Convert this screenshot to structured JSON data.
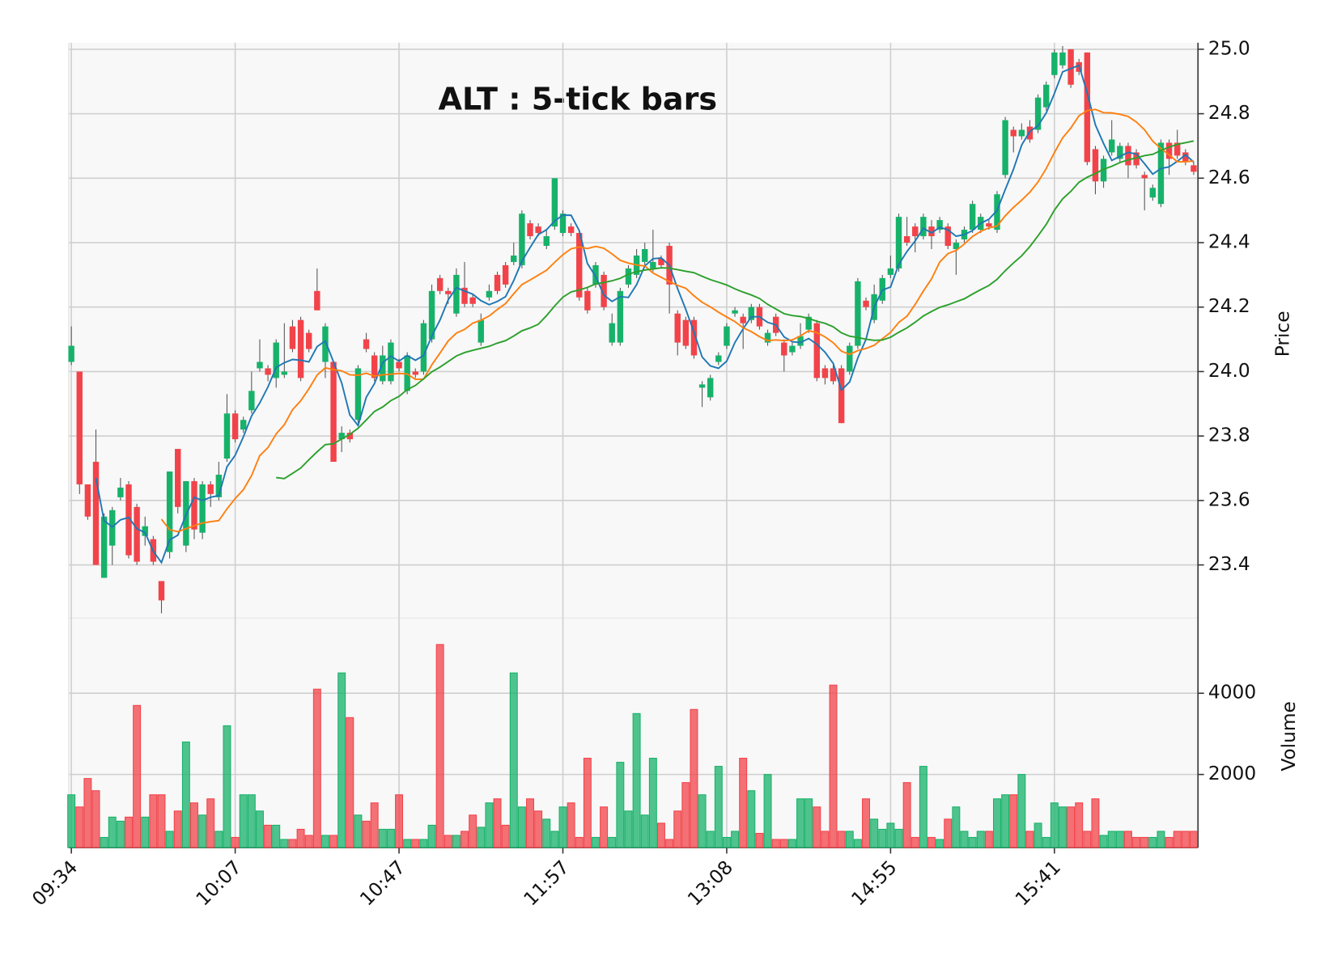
{
  "chart_data": {
    "type": "candlestick",
    "title": "ALT : 5-tick bars",
    "ylabel": "Price",
    "volume_label": "Volume",
    "categories": [
      "09:34",
      null,
      null,
      null,
      null,
      null,
      null,
      null,
      null,
      null,
      null,
      null,
      null,
      null,
      null,
      null,
      null,
      null,
      null,
      null,
      "10:07",
      null,
      null,
      null,
      null,
      null,
      null,
      null,
      null,
      null,
      null,
      null,
      null,
      null,
      null,
      null,
      null,
      null,
      null,
      null,
      "10:47",
      null,
      null,
      null,
      null,
      null,
      null,
      null,
      null,
      null,
      null,
      null,
      null,
      null,
      null,
      null,
      null,
      null,
      null,
      null,
      "11:57",
      null,
      null,
      null,
      null,
      null,
      null,
      null,
      null,
      null,
      null,
      null,
      null,
      null,
      null,
      null,
      null,
      null,
      null,
      null,
      "13:08",
      null,
      null,
      null,
      null,
      null,
      null,
      null,
      null,
      null,
      null,
      null,
      null,
      null,
      null,
      null,
      null,
      null,
      null,
      null,
      "14:55",
      null,
      null,
      null,
      null,
      null,
      null,
      null,
      null,
      null,
      null,
      null,
      null,
      null,
      null,
      null,
      null,
      null,
      null,
      null,
      "15:41",
      null,
      null,
      null,
      null,
      null,
      null,
      null,
      null,
      null,
      null,
      null,
      null,
      null,
      null,
      null,
      null,
      null
    ],
    "open": [
      24.03,
      24.0,
      23.65,
      23.72,
      23.36,
      23.46,
      23.61,
      23.65,
      23.58,
      23.49,
      23.48,
      23.35,
      23.44,
      23.76,
      23.46,
      23.66,
      23.5,
      23.65,
      23.61,
      23.73,
      23.87,
      23.82,
      23.88,
      24.01,
      24.01,
      23.98,
      23.99,
      24.14,
      24.16,
      24.12,
      24.25,
      24.03,
      24.03,
      23.79,
      23.81,
      23.85,
      24.1,
      24.05,
      23.97,
      23.97,
      24.03,
      23.94,
      24.0,
      24.0,
      24.1,
      24.29,
      24.25,
      24.18,
      24.26,
      24.23,
      24.09,
      24.23,
      24.3,
      24.33,
      24.34,
      24.33,
      24.46,
      24.45,
      24.39,
      24.45,
      24.43,
      24.45,
      24.43,
      24.25,
      24.27,
      24.3,
      24.09,
      24.09,
      24.27,
      24.3,
      24.34,
      24.32,
      24.35,
      24.39,
      24.18,
      24.16,
      24.16,
      23.95,
      23.92,
      24.03,
      24.08,
      24.18,
      24.17,
      24.16,
      24.2,
      24.09,
      24.17,
      24.09,
      24.06,
      24.08,
      24.13,
      24.15,
      24.01,
      24.01,
      24.01,
      24.0,
      24.08,
      24.22,
      24.16,
      24.22,
      24.3,
      24.32,
      24.42,
      24.45,
      24.42,
      24.45,
      24.44,
      24.45,
      24.38,
      24.41,
      24.44,
      24.44,
      24.46,
      24.44,
      24.61,
      24.75,
      24.73,
      24.76,
      24.75,
      24.82,
      24.92,
      24.95,
      25.0,
      24.96,
      24.99,
      24.69,
      24.59,
      24.68,
      24.66,
      24.7,
      24.68,
      24.61,
      24.54,
      24.52,
      24.71,
      24.71,
      24.68,
      24.64
    ],
    "high": [
      24.14,
      24.0,
      23.65,
      23.82,
      23.56,
      23.58,
      23.67,
      23.66,
      23.59,
      23.55,
      23.49,
      23.35,
      23.69,
      23.76,
      23.66,
      23.67,
      23.66,
      23.66,
      23.72,
      23.93,
      23.88,
      23.86,
      24.0,
      24.1,
      24.02,
      24.1,
      24.15,
      24.16,
      24.17,
      24.13,
      24.32,
      24.15,
      24.03,
      23.83,
      23.82,
      24.02,
      24.12,
      24.06,
      24.08,
      24.1,
      24.04,
      24.06,
      24.01,
      24.16,
      24.27,
      24.3,
      24.26,
      24.32,
      24.34,
      24.24,
      24.18,
      24.27,
      24.31,
      24.34,
      24.4,
      24.5,
      24.47,
      24.46,
      24.44,
      24.6,
      24.5,
      24.46,
      24.43,
      24.26,
      24.34,
      24.31,
      24.18,
      24.26,
      24.33,
      24.38,
      24.4,
      24.44,
      24.36,
      24.4,
      24.19,
      24.17,
      24.17,
      23.97,
      23.99,
      24.06,
      24.15,
      24.2,
      24.18,
      24.21,
      24.21,
      24.13,
      24.18,
      24.1,
      24.09,
      24.15,
      24.18,
      24.16,
      24.02,
      24.02,
      24.02,
      24.09,
      24.29,
      24.23,
      24.27,
      24.3,
      24.36,
      24.49,
      24.48,
      24.46,
      24.49,
      24.47,
      24.48,
      24.46,
      24.41,
      24.45,
      24.53,
      24.49,
      24.47,
      24.56,
      24.79,
      24.76,
      24.77,
      24.78,
      24.86,
      24.9,
      25.0,
      25.01,
      25.0,
      24.97,
      24.99,
      24.7,
      24.67,
      24.78,
      24.71,
      24.71,
      24.69,
      24.62,
      24.58,
      24.72,
      24.72,
      24.75,
      24.69,
      24.65
    ],
    "low": [
      24.02,
      23.62,
      23.54,
      23.4,
      23.36,
      23.4,
      23.6,
      23.42,
      23.4,
      23.46,
      23.4,
      23.25,
      23.42,
      23.56,
      23.44,
      23.48,
      23.48,
      23.58,
      23.6,
      23.72,
      23.78,
      23.81,
      23.87,
      24.0,
      23.97,
      23.95,
      23.98,
      24.06,
      23.97,
      24.06,
      24.19,
      23.98,
      23.72,
      23.75,
      23.78,
      23.84,
      24.06,
      23.97,
      23.96,
      23.96,
      24.0,
      23.93,
      23.98,
      23.99,
      24.09,
      24.24,
      24.21,
      24.17,
      24.2,
      24.2,
      24.08,
      24.22,
      24.24,
      24.26,
      24.33,
      24.32,
      24.41,
      24.42,
      24.38,
      24.44,
      24.42,
      24.42,
      24.22,
      24.18,
      24.26,
      24.19,
      24.08,
      24.08,
      24.26,
      24.29,
      24.33,
      24.31,
      24.32,
      24.18,
      24.05,
      24.07,
      24.04,
      23.89,
      23.91,
      24.02,
      24.07,
      24.17,
      24.07,
      24.15,
      24.13,
      24.08,
      24.11,
      24.0,
      24.05,
      24.07,
      24.12,
      23.97,
      23.96,
      23.96,
      23.84,
      23.99,
      24.07,
      24.19,
      24.15,
      24.21,
      24.29,
      24.31,
      24.39,
      24.37,
      24.41,
      24.38,
      24.43,
      24.38,
      24.3,
      24.4,
      24.43,
      24.43,
      24.44,
      24.43,
      24.6,
      24.68,
      24.72,
      24.71,
      24.74,
      24.81,
      24.91,
      24.94,
      24.88,
      24.92,
      24.64,
      24.55,
      24.57,
      24.67,
      24.65,
      24.6,
      24.63,
      24.5,
      24.53,
      24.51,
      24.61,
      24.66,
      24.64,
      24.61
    ],
    "close": [
      24.08,
      23.65,
      23.55,
      23.4,
      23.55,
      23.57,
      23.64,
      23.43,
      23.41,
      23.52,
      23.41,
      23.29,
      23.69,
      23.58,
      23.66,
      23.51,
      23.65,
      23.62,
      23.68,
      23.87,
      23.79,
      23.85,
      23.94,
      24.03,
      23.99,
      24.09,
      24.0,
      24.07,
      23.98,
      24.07,
      24.19,
      24.14,
      23.72,
      23.81,
      23.79,
      24.01,
      24.07,
      23.98,
      24.05,
      24.09,
      24.01,
      24.05,
      23.99,
      24.15,
      24.25,
      24.25,
      24.24,
      24.3,
      24.21,
      24.21,
      24.16,
      24.25,
      24.25,
      24.27,
      24.36,
      24.49,
      24.42,
      24.43,
      24.42,
      24.6,
      24.49,
      24.43,
      24.23,
      24.19,
      24.33,
      24.2,
      24.15,
      24.25,
      24.32,
      24.36,
      24.38,
      24.34,
      24.33,
      24.27,
      24.09,
      24.08,
      24.05,
      23.96,
      23.98,
      24.05,
      24.14,
      24.19,
      24.15,
      24.2,
      24.14,
      24.12,
      24.12,
      24.05,
      24.08,
      24.11,
      24.17,
      23.98,
      23.98,
      23.97,
      23.84,
      24.08,
      24.28,
      24.2,
      24.24,
      24.29,
      24.32,
      24.48,
      24.4,
      24.42,
      24.48,
      24.42,
      24.47,
      24.39,
      24.4,
      24.44,
      24.52,
      24.48,
      24.45,
      24.55,
      24.78,
      24.73,
      24.75,
      24.72,
      24.85,
      24.89,
      24.99,
      24.99,
      24.89,
      24.93,
      24.65,
      24.59,
      24.66,
      24.72,
      24.7,
      24.64,
      24.64,
      24.6,
      24.57,
      24.71,
      24.66,
      24.67,
      24.65,
      24.62
    ],
    "volume": [
      1500,
      1200,
      1900,
      1600,
      450,
      950,
      850,
      950,
      3700,
      950,
      1500,
      1500,
      600,
      1100,
      2800,
      1300,
      1000,
      1400,
      600,
      3200,
      450,
      1500,
      1500,
      1100,
      750,
      750,
      400,
      400,
      650,
      500,
      4100,
      500,
      500,
      4500,
      3400,
      1000,
      850,
      1300,
      650,
      650,
      1500,
      400,
      400,
      400,
      750,
      5200,
      500,
      500,
      600,
      1000,
      700,
      1300,
      1400,
      750,
      4500,
      1200,
      1400,
      1100,
      900,
      600,
      1200,
      1300,
      450,
      2400,
      450,
      1200,
      450,
      2300,
      1100,
      3500,
      1000,
      2400,
      800,
      400,
      1100,
      1800,
      3600,
      1500,
      600,
      2200,
      450,
      600,
      2400,
      1600,
      550,
      2000,
      400,
      400,
      400,
      1400,
      1400,
      1200,
      600,
      4200,
      600,
      600,
      400,
      1400,
      900,
      650,
      800,
      650,
      1800,
      450,
      2200,
      450,
      400,
      900,
      1200,
      600,
      450,
      600,
      600,
      1400,
      1500,
      1500,
      2000,
      600,
      800,
      450,
      1300,
      1200,
      1200,
      1300,
      600,
      1400,
      500,
      600,
      600,
      600,
      450,
      450,
      450,
      600,
      450,
      600,
      600,
      600
    ],
    "up_color": "#17b26a",
    "down_color": "#f2434a",
    "mav": [
      4,
      12,
      26
    ],
    "mav_colors": [
      "#1f77b4",
      "#ff7f0e",
      "#2ca02c"
    ],
    "ylim": [
      23.235,
      25.02
    ],
    "yticks": [
      23.4,
      23.6,
      23.8,
      {
        "value": 24,
        "label": "24.0"
      },
      24.2,
      24.4,
      24.6,
      24.8,
      {
        "value": 25,
        "label": "25.0"
      }
    ],
    "volume_ylim": [
      200,
      5850
    ],
    "volume_yticks": [
      2000,
      4000
    ],
    "grid": true
  }
}
